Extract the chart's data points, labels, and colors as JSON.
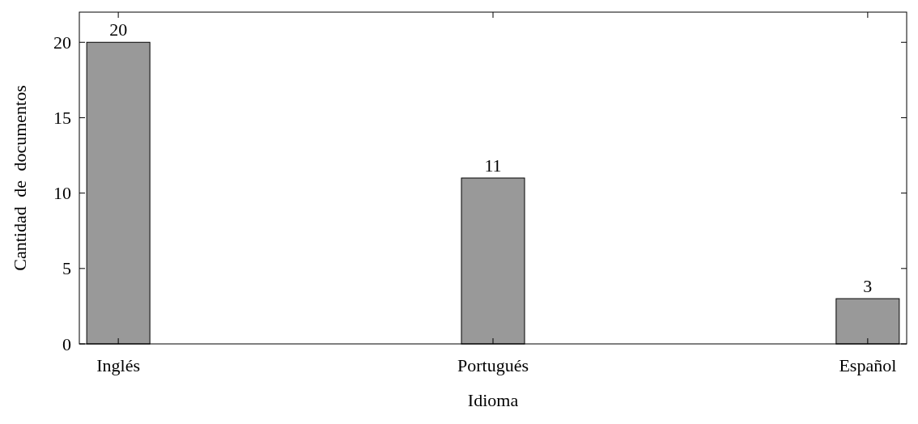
{
  "chart_data": {
    "type": "bar",
    "xlabel": "Idioma",
    "ylabel": "Cantidad de documentos",
    "categories": [
      "Inglés",
      "Portugués",
      "Español"
    ],
    "values": [
      20,
      11,
      3
    ],
    "color": "#999999",
    "ylim": [
      0,
      22
    ],
    "yticks": [
      0,
      5,
      10,
      15,
      20
    ],
    "grid": false,
    "data_labels": true
  }
}
